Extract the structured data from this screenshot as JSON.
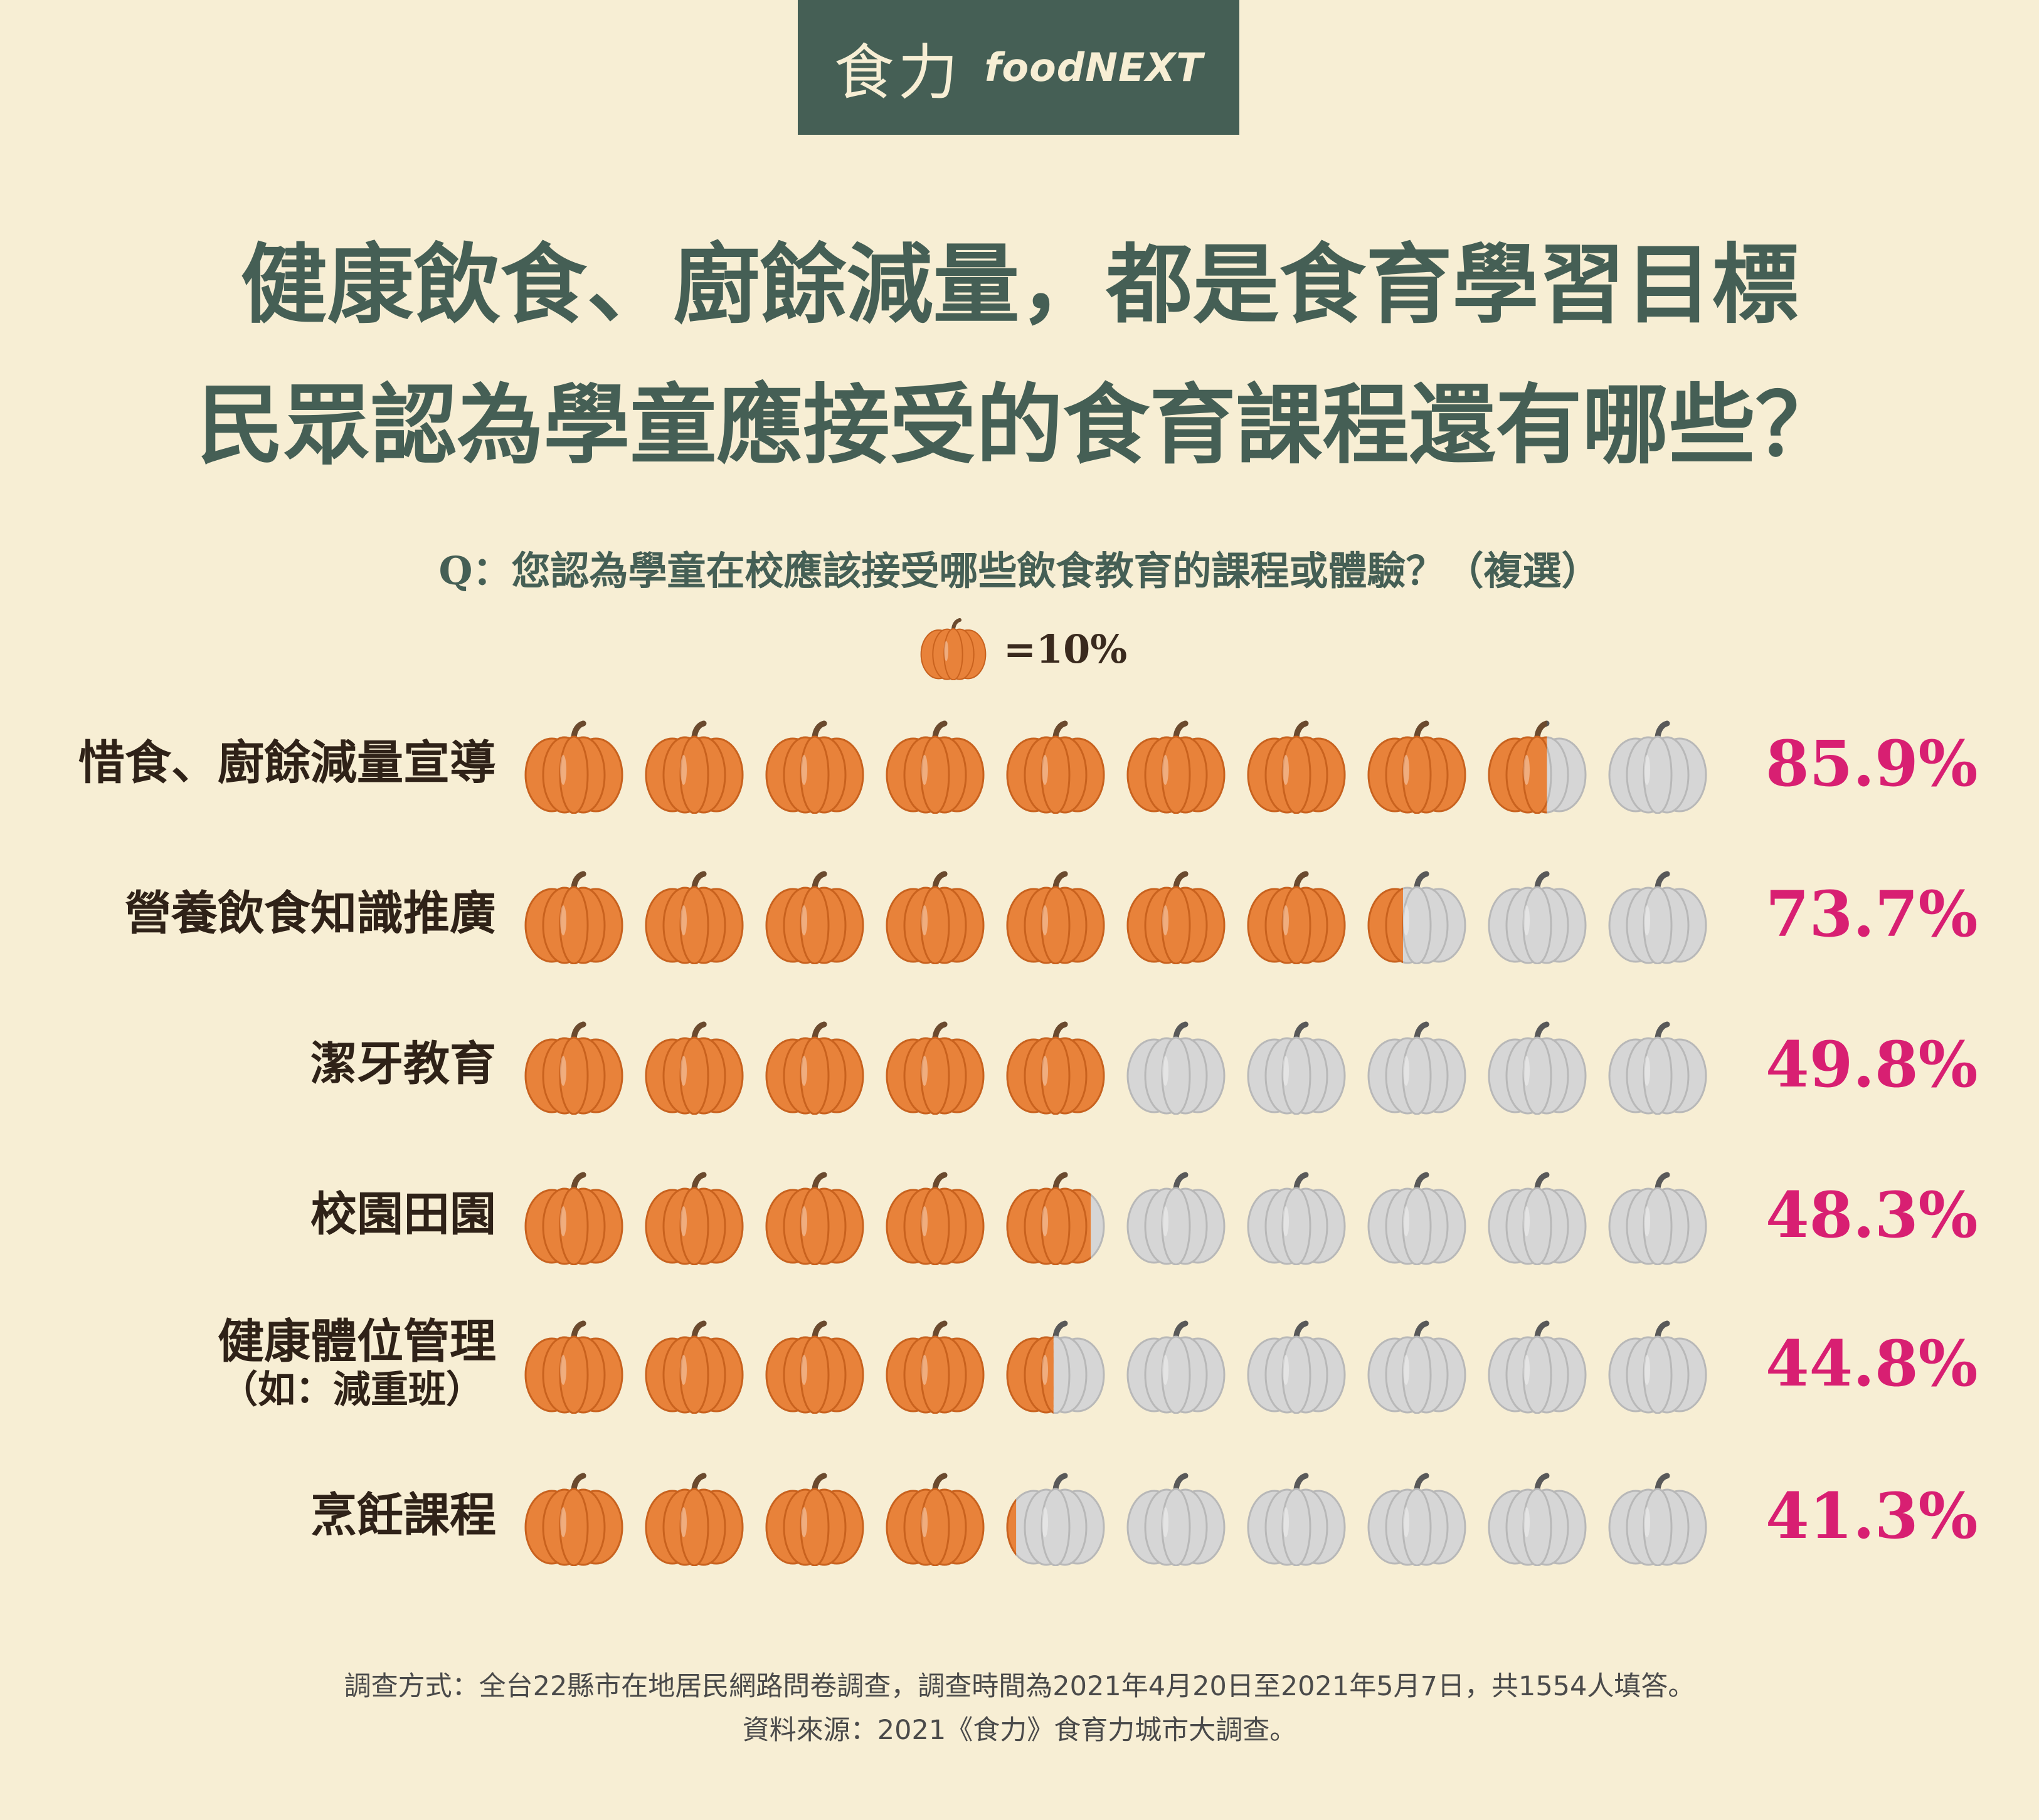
{
  "logo": {
    "cn": "食力",
    "en": "foodNEXT"
  },
  "title": {
    "line1": "健康飲食、廚餘減量，都是食育學習目標",
    "line2": "民眾認為學童應接受的食育課程還有哪些？"
  },
  "question": "Q：您認為學童在校應該接受哪些飲食教育的課程或體驗？（複選）",
  "legend": {
    "text": "=10%",
    "unit_percent": 10
  },
  "colors": {
    "filled": "#e8823a",
    "empty": "#d6d6d6",
    "percent_text": "#d81f72",
    "brand": "#455f55"
  },
  "chart_data": {
    "type": "pictograph",
    "icon": "pumpkin-icon",
    "icon_value_percent": 10,
    "icons_per_row": 10,
    "categories": [
      {
        "label": "惜食、廚餘減量宣導",
        "sublabel": "",
        "value": 85.9,
        "value_label": "85.9%"
      },
      {
        "label": "營養飲食知識推廣",
        "sublabel": "",
        "value": 73.7,
        "value_label": "73.7%"
      },
      {
        "label": "潔牙教育",
        "sublabel": "",
        "value": 49.8,
        "value_label": "49.8%"
      },
      {
        "label": "校園田園",
        "sublabel": "",
        "value": 48.3,
        "value_label": "48.3%"
      },
      {
        "label": "健康體位管理",
        "sublabel": "（如：減重班）",
        "value": 44.8,
        "value_label": "44.8%"
      },
      {
        "label": "烹飪課程",
        "sublabel": "",
        "value": 41.3,
        "value_label": "41.3%"
      }
    ]
  },
  "footer": {
    "method": "調查方式：全台22縣市在地居民網路問卷調查，調查時間為2021年4月20日至2021年5月7日，共1554人填答。",
    "source": "資料來源：2021《食力》食育力城市大調查。"
  }
}
